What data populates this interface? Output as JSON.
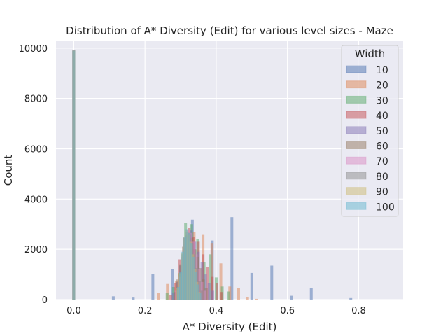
{
  "chart_data": {
    "type": "bar",
    "title": "Distribution of A* Diversity (Edit) for various level sizes - Maze",
    "xlabel": "A* Diversity (Edit)",
    "ylabel": "Count",
    "xlim": [
      -0.05,
      0.925
    ],
    "ylim": [
      0,
      10300
    ],
    "xticks": [
      0.0,
      0.2,
      0.4,
      0.6,
      0.8
    ],
    "xtick_labels": [
      "0.0",
      "0.2",
      "0.4",
      "0.6",
      "0.8"
    ],
    "yticks": [
      0,
      2000,
      4000,
      6000,
      8000,
      10000
    ],
    "ytick_labels": [
      "0",
      "2000",
      "4000",
      "6000",
      "8000",
      "10000"
    ],
    "grid": true,
    "legend_title": "Width",
    "legend_position": "top-right",
    "bar_opacity": 0.5,
    "series": [
      {
        "name": "10",
        "color": "#4c72b0",
        "bins": [
          [
            0.0,
            9900
          ],
          [
            0.111,
            130
          ],
          [
            0.167,
            80
          ],
          [
            0.222,
            1030
          ],
          [
            0.278,
            1210
          ],
          [
            0.333,
            3180
          ],
          [
            0.389,
            2350
          ],
          [
            0.444,
            3280
          ],
          [
            0.5,
            1060
          ],
          [
            0.556,
            1350
          ],
          [
            0.611,
            150
          ],
          [
            0.667,
            460
          ],
          [
            0.778,
            60
          ]
        ]
      },
      {
        "name": "20",
        "color": "#dd8452",
        "bins": [
          [
            0.0,
            9900
          ],
          [
            0.238,
            250
          ],
          [
            0.263,
            620
          ],
          [
            0.288,
            720
          ],
          [
            0.313,
            1360
          ],
          [
            0.338,
            2700
          ],
          [
            0.363,
            2600
          ],
          [
            0.388,
            2250
          ],
          [
            0.413,
            1440
          ],
          [
            0.438,
            520
          ],
          [
            0.463,
            460
          ],
          [
            0.488,
            110
          ],
          [
            0.513,
            30
          ]
        ]
      },
      {
        "name": "30",
        "color": "#55a868",
        "bins": [
          [
            0.0,
            9900
          ],
          [
            0.262,
            260
          ],
          [
            0.28,
            500
          ],
          [
            0.297,
            1050
          ],
          [
            0.314,
            3060
          ],
          [
            0.331,
            3000
          ],
          [
            0.348,
            2400
          ],
          [
            0.366,
            1500
          ],
          [
            0.383,
            1800
          ],
          [
            0.4,
            880
          ],
          [
            0.417,
            520
          ],
          [
            0.434,
            320
          ]
        ]
      },
      {
        "name": "40",
        "color": "#c44e52",
        "bins": [
          [
            0.0,
            9900
          ],
          [
            0.272,
            180
          ],
          [
            0.285,
            650
          ],
          [
            0.298,
            1600
          ],
          [
            0.311,
            2450
          ],
          [
            0.324,
            2850
          ],
          [
            0.337,
            2500
          ],
          [
            0.35,
            2300
          ],
          [
            0.363,
            1800
          ],
          [
            0.376,
            1300
          ],
          [
            0.389,
            900
          ],
          [
            0.402,
            650
          ],
          [
            0.415,
            300
          ]
        ]
      },
      {
        "name": "50",
        "color": "#8172b3",
        "bins": [
          [
            0.0,
            9900
          ],
          [
            0.28,
            250
          ],
          [
            0.29,
            700
          ],
          [
            0.3,
            1350
          ],
          [
            0.31,
            2200
          ],
          [
            0.32,
            2600
          ],
          [
            0.33,
            2750
          ],
          [
            0.34,
            2300
          ],
          [
            0.35,
            1900
          ],
          [
            0.36,
            1500
          ],
          [
            0.37,
            1000
          ],
          [
            0.38,
            650
          ],
          [
            0.39,
            350
          ]
        ]
      },
      {
        "name": "60",
        "color": "#937860",
        "bins": [
          [
            0.0,
            9900
          ],
          [
            0.284,
            300
          ],
          [
            0.292,
            800
          ],
          [
            0.3,
            1400
          ],
          [
            0.308,
            2100
          ],
          [
            0.316,
            2550
          ],
          [
            0.324,
            2650
          ],
          [
            0.332,
            2450
          ],
          [
            0.34,
            2000
          ],
          [
            0.348,
            1700
          ],
          [
            0.356,
            1250
          ],
          [
            0.364,
            800
          ],
          [
            0.372,
            450
          ]
        ]
      },
      {
        "name": "70",
        "color": "#da8bc3",
        "bins": [
          [
            0.0,
            9900
          ],
          [
            0.288,
            350
          ],
          [
            0.296,
            900
          ],
          [
            0.304,
            1700
          ],
          [
            0.312,
            2500
          ],
          [
            0.32,
            2750
          ],
          [
            0.328,
            2650
          ],
          [
            0.336,
            2300
          ],
          [
            0.344,
            1800
          ],
          [
            0.352,
            1200
          ],
          [
            0.36,
            700
          ],
          [
            0.368,
            350
          ]
        ]
      },
      {
        "name": "80",
        "color": "#8c8c8c",
        "bins": [
          [
            0.0,
            9900
          ],
          [
            0.29,
            400
          ],
          [
            0.297,
            1000
          ],
          [
            0.304,
            1800
          ],
          [
            0.311,
            2450
          ],
          [
            0.318,
            2700
          ],
          [
            0.325,
            2600
          ],
          [
            0.332,
            2250
          ],
          [
            0.339,
            1800
          ],
          [
            0.346,
            1250
          ],
          [
            0.353,
            750
          ],
          [
            0.36,
            350
          ]
        ]
      },
      {
        "name": "90",
        "color": "#ccb974",
        "bins": [
          [
            0.0,
            9900
          ],
          [
            0.292,
            450
          ],
          [
            0.298,
            1050
          ],
          [
            0.304,
            1850
          ],
          [
            0.31,
            2500
          ],
          [
            0.316,
            2750
          ],
          [
            0.322,
            2600
          ],
          [
            0.328,
            2300
          ],
          [
            0.334,
            1800
          ],
          [
            0.34,
            1200
          ],
          [
            0.346,
            700
          ],
          [
            0.352,
            300
          ]
        ]
      },
      {
        "name": "100",
        "color": "#64b5cd",
        "bins": [
          [
            0.0,
            9900
          ],
          [
            0.294,
            500
          ],
          [
            0.3,
            1100
          ],
          [
            0.306,
            1900
          ],
          [
            0.312,
            2500
          ],
          [
            0.318,
            2800
          ],
          [
            0.324,
            2650
          ],
          [
            0.33,
            2250
          ],
          [
            0.336,
            1700
          ],
          [
            0.342,
            1100
          ],
          [
            0.348,
            600
          ],
          [
            0.354,
            250
          ]
        ]
      }
    ]
  }
}
